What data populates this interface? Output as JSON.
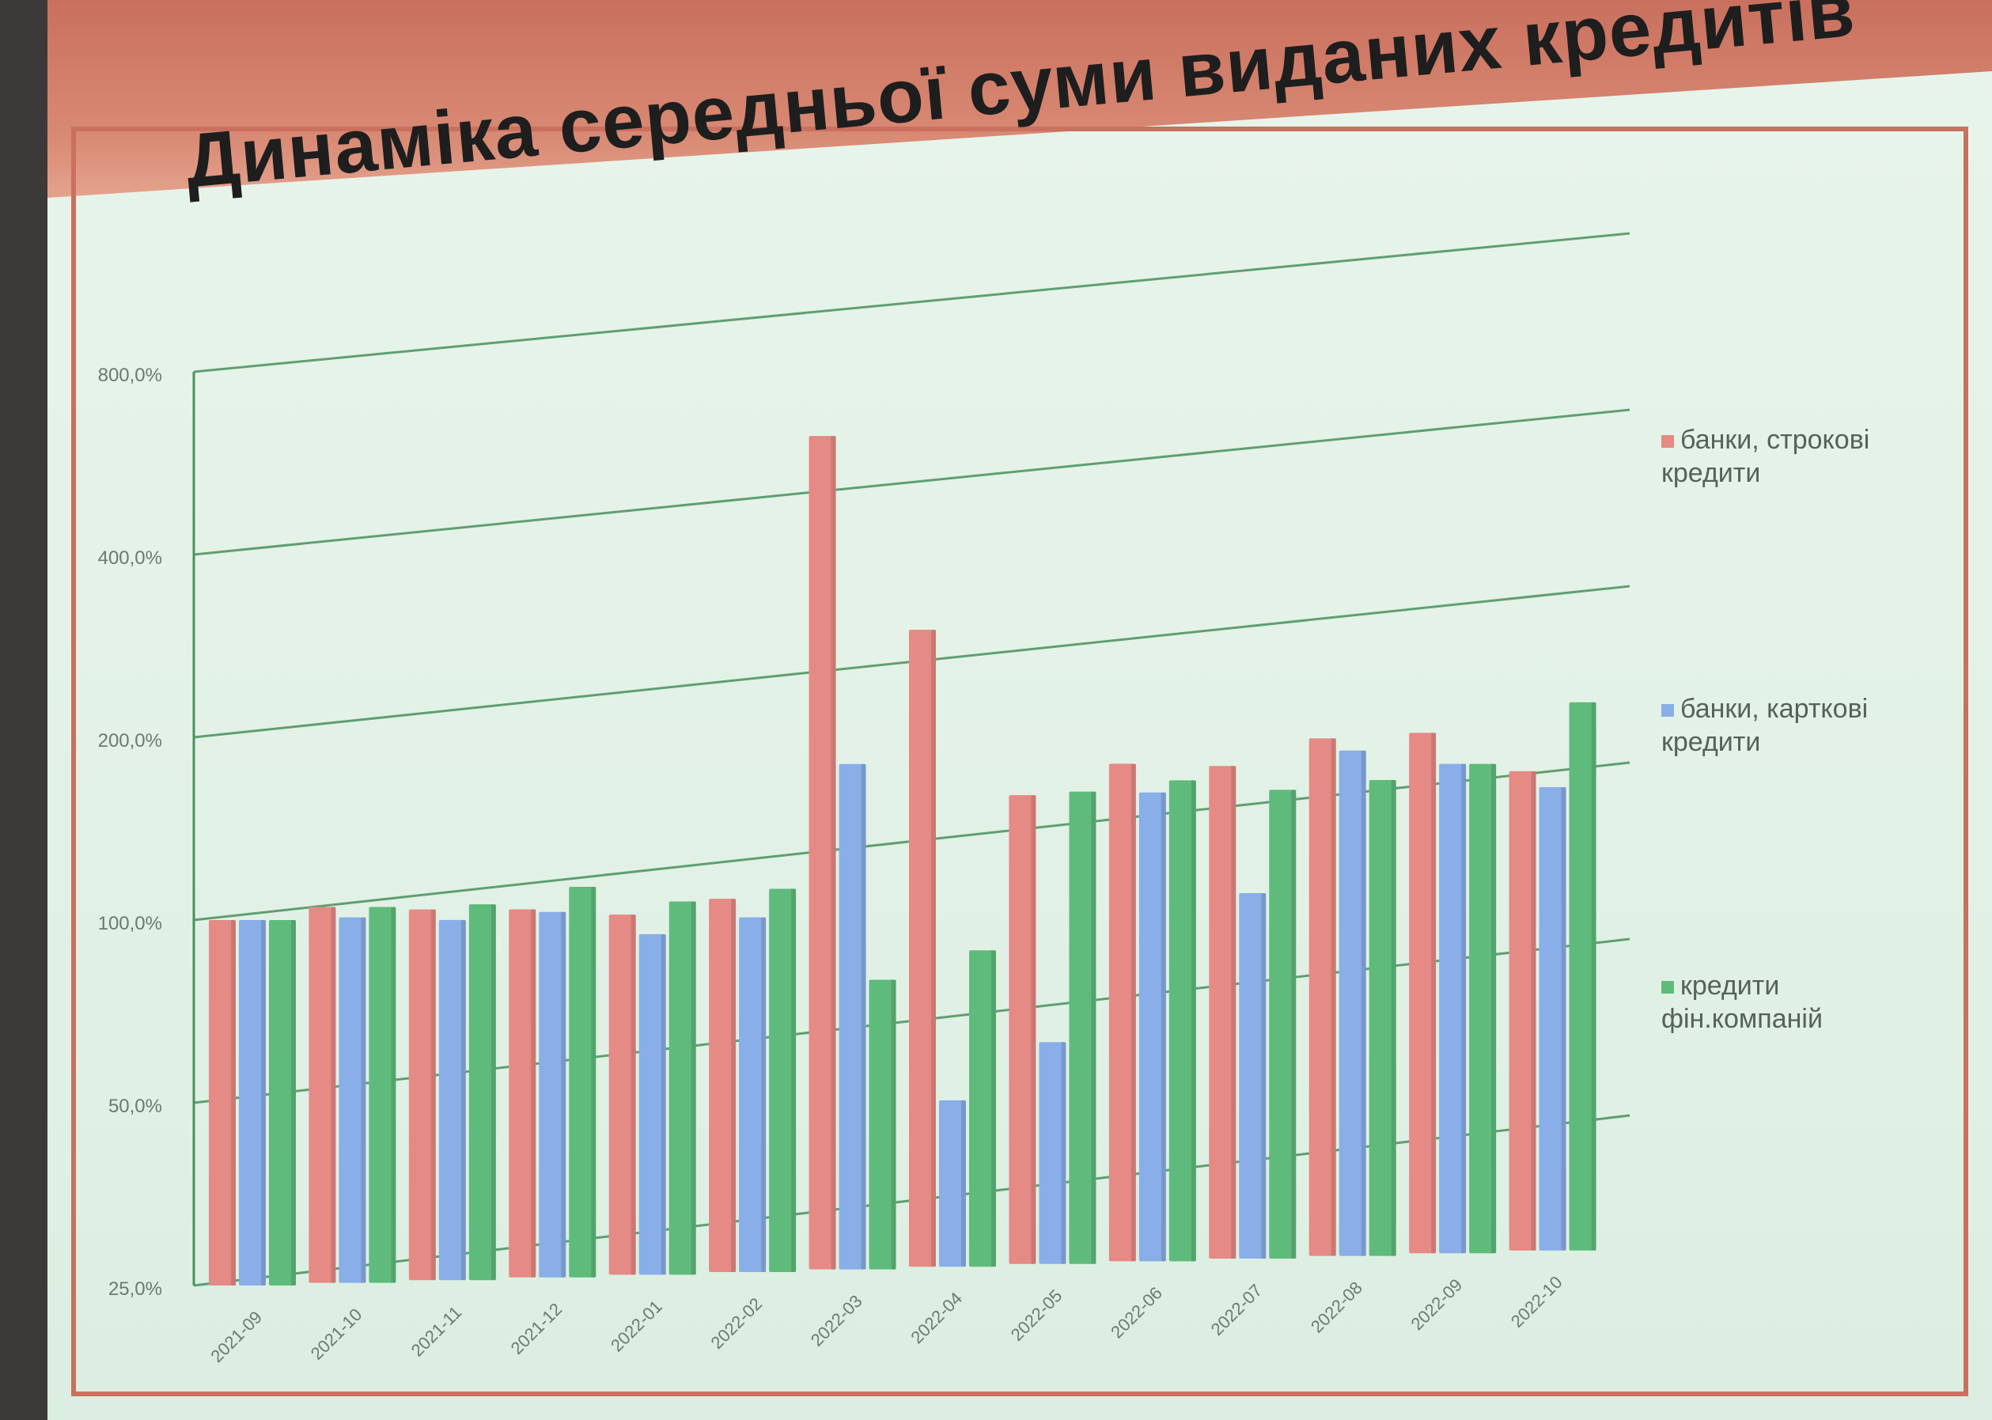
{
  "slide": {
    "title": "Динаміка середньої суми виданих кредитів"
  },
  "colors": {
    "series_1": "#e58a84",
    "series_2": "#89aee8",
    "series_3": "#5fbb7b",
    "gridline": "#49915d",
    "accent": "#c9705e"
  },
  "chart_data": {
    "type": "bar",
    "title": "Динаміка середньої суми виданих кредитів",
    "xlabel": "",
    "ylabel": "",
    "y_scale": "log",
    "ylim": [
      "25,0%",
      "800,0%"
    ],
    "yticks": [
      "25,0%",
      "50,0%",
      "100,0%",
      "200,0%",
      "400,0%",
      "800,0%"
    ],
    "ytick_values": [
      25,
      50,
      100,
      200,
      400,
      800
    ],
    "categories": [
      "2021-09",
      "2021-10",
      "2021-11",
      "2021-12",
      "2022-01",
      "2022-02",
      "2022-03",
      "2022-04",
      "2022-05",
      "2022-06",
      "2022-07",
      "2022-08",
      "2022-09",
      "2022-10"
    ],
    "series": [
      {
        "name": "банки, строкові кредити",
        "values": [
          100,
          104,
          102,
          101,
          98,
          103,
          590,
          280,
          148,
          165,
          162,
          178,
          180,
          154
        ]
      },
      {
        "name": "банки, карткові кредити",
        "values": [
          100,
          100,
          98,
          100,
          91,
          96,
          170,
          47,
          58,
          148,
          100,
          170,
          160,
          145
        ]
      },
      {
        "name": "кредити фін.компаній",
        "values": [
          100,
          104,
          104,
          110,
          103,
          107,
          75,
          83,
          150,
          155,
          148,
          152,
          160,
          200
        ]
      }
    ],
    "grid": true,
    "legend_position": "right",
    "style": "3d-clustered"
  }
}
